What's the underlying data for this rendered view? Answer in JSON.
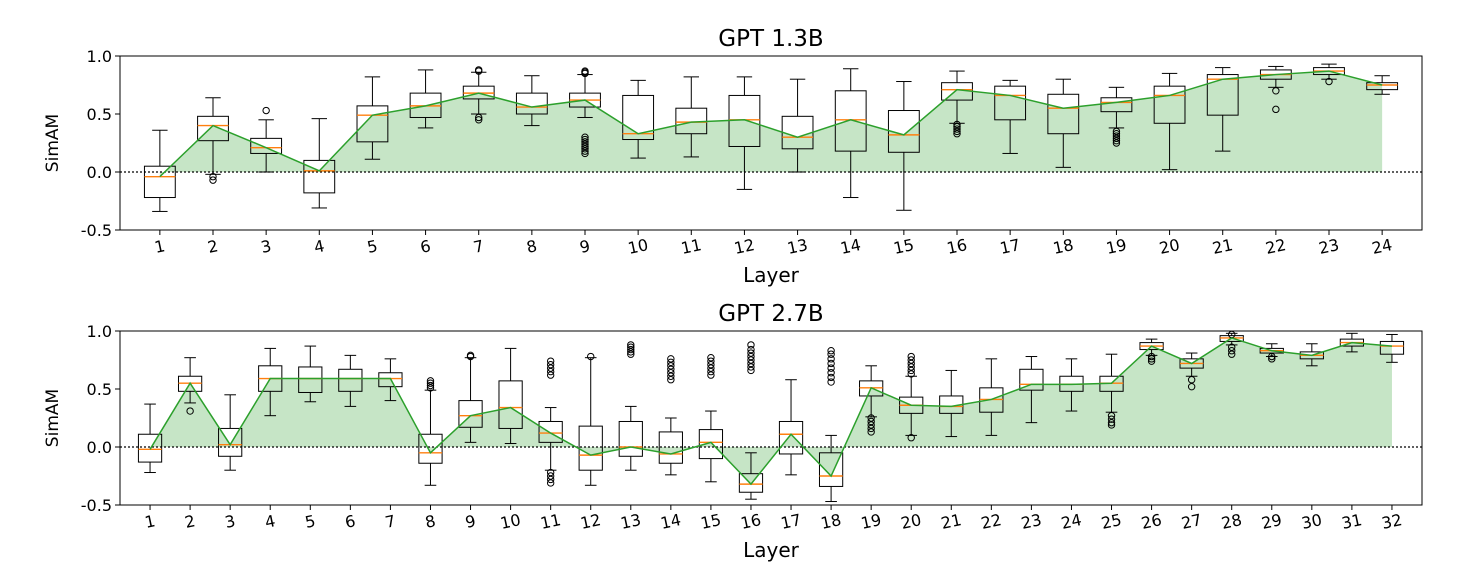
{
  "chart_data": [
    {
      "type": "box",
      "title": "GPT 1.3B",
      "xlabel": "Layer",
      "ylabel": "SimAM",
      "ylim": [
        -0.5,
        1.0
      ],
      "yticks": [
        -0.5,
        0.0,
        0.5,
        1.0
      ],
      "ytick_labels": [
        "-0.5",
        "0.0",
        "0.5",
        "1.0"
      ],
      "categories": [
        "1",
        "2",
        "3",
        "4",
        "5",
        "6",
        "7",
        "8",
        "9",
        "10",
        "11",
        "12",
        "13",
        "14",
        "15",
        "16",
        "17",
        "18",
        "19",
        "20",
        "21",
        "22",
        "23",
        "24"
      ],
      "reference_line": 0.0,
      "boxes": [
        {
          "whislo": -0.34,
          "q1": -0.22,
          "med": -0.04,
          "q3": 0.05,
          "whishi": 0.36,
          "fliers": []
        },
        {
          "whislo": -0.02,
          "q1": 0.27,
          "med": 0.4,
          "q3": 0.48,
          "whishi": 0.64,
          "fliers": [
            -0.04,
            -0.07
          ]
        },
        {
          "whislo": 0.0,
          "q1": 0.16,
          "med": 0.21,
          "q3": 0.29,
          "whishi": 0.45,
          "fliers": [
            0.53
          ]
        },
        {
          "whislo": -0.31,
          "q1": -0.18,
          "med": 0.01,
          "q3": 0.1,
          "whishi": 0.46,
          "fliers": []
        },
        {
          "whislo": 0.11,
          "q1": 0.26,
          "med": 0.49,
          "q3": 0.57,
          "whishi": 0.82,
          "fliers": []
        },
        {
          "whislo": 0.38,
          "q1": 0.47,
          "med": 0.57,
          "q3": 0.68,
          "whishi": 0.88,
          "fliers": []
        },
        {
          "whislo": 0.5,
          "q1": 0.63,
          "med": 0.68,
          "q3": 0.74,
          "whishi": 0.86,
          "fliers": [
            0.45,
            0.47,
            0.87,
            0.88
          ]
        },
        {
          "whislo": 0.4,
          "q1": 0.5,
          "med": 0.56,
          "q3": 0.68,
          "whishi": 0.83,
          "fliers": []
        },
        {
          "whislo": 0.47,
          "q1": 0.56,
          "med": 0.62,
          "q3": 0.68,
          "whishi": 0.84,
          "fliers": [
            0.16,
            0.18,
            0.2,
            0.22,
            0.24,
            0.26,
            0.28,
            0.3,
            0.85,
            0.86,
            0.87
          ]
        },
        {
          "whislo": 0.12,
          "q1": 0.28,
          "med": 0.33,
          "q3": 0.66,
          "whishi": 0.79,
          "fliers": []
        },
        {
          "whislo": 0.13,
          "q1": 0.33,
          "med": 0.43,
          "q3": 0.55,
          "whishi": 0.82,
          "fliers": []
        },
        {
          "whislo": -0.15,
          "q1": 0.22,
          "med": 0.45,
          "q3": 0.66,
          "whishi": 0.82,
          "fliers": []
        },
        {
          "whislo": 0.0,
          "q1": 0.2,
          "med": 0.3,
          "q3": 0.48,
          "whishi": 0.8,
          "fliers": []
        },
        {
          "whislo": -0.22,
          "q1": 0.18,
          "med": 0.45,
          "q3": 0.7,
          "whishi": 0.89,
          "fliers": []
        },
        {
          "whislo": -0.33,
          "q1": 0.17,
          "med": 0.32,
          "q3": 0.53,
          "whishi": 0.78,
          "fliers": []
        },
        {
          "whislo": 0.42,
          "q1": 0.62,
          "med": 0.71,
          "q3": 0.77,
          "whishi": 0.87,
          "fliers": [
            0.33,
            0.35,
            0.37,
            0.39,
            0.41
          ]
        },
        {
          "whislo": 0.16,
          "q1": 0.45,
          "med": 0.66,
          "q3": 0.74,
          "whishi": 0.79,
          "fliers": []
        },
        {
          "whislo": 0.04,
          "q1": 0.33,
          "med": 0.55,
          "q3": 0.67,
          "whishi": 0.8,
          "fliers": []
        },
        {
          "whislo": 0.38,
          "q1": 0.52,
          "med": 0.6,
          "q3": 0.64,
          "whishi": 0.73,
          "fliers": [
            0.25,
            0.27,
            0.29,
            0.31,
            0.33,
            0.35
          ]
        },
        {
          "whislo": 0.02,
          "q1": 0.42,
          "med": 0.66,
          "q3": 0.74,
          "whishi": 0.85,
          "fliers": []
        },
        {
          "whislo": 0.18,
          "q1": 0.49,
          "med": 0.8,
          "q3": 0.84,
          "whishi": 0.9,
          "fliers": []
        },
        {
          "whislo": 0.73,
          "q1": 0.8,
          "med": 0.84,
          "q3": 0.88,
          "whishi": 0.91,
          "fliers": [
            0.54,
            0.7
          ]
        },
        {
          "whislo": 0.8,
          "q1": 0.84,
          "med": 0.87,
          "q3": 0.9,
          "whishi": 0.93,
          "fliers": [
            0.78
          ]
        },
        {
          "whislo": 0.67,
          "q1": 0.71,
          "med": 0.75,
          "q3": 0.77,
          "whishi": 0.83,
          "fliers": []
        }
      ]
    },
    {
      "type": "box",
      "title": "GPT 2.7B",
      "xlabel": "Layer",
      "ylabel": "SimAM",
      "ylim": [
        -0.5,
        1.0
      ],
      "yticks": [
        -0.5,
        0.0,
        0.5,
        1.0
      ],
      "ytick_labels": [
        "-0.5",
        "0.0",
        "0.5",
        "1.0"
      ],
      "categories": [
        "1",
        "2",
        "3",
        "4",
        "5",
        "6",
        "7",
        "8",
        "9",
        "10",
        "11",
        "12",
        "13",
        "14",
        "15",
        "16",
        "17",
        "18",
        "19",
        "20",
        "21",
        "22",
        "23",
        "24",
        "25",
        "26",
        "27",
        "28",
        "29",
        "30",
        "31",
        "32"
      ],
      "reference_line": 0.0,
      "boxes": [
        {
          "whislo": -0.22,
          "q1": -0.13,
          "med": -0.02,
          "q3": 0.11,
          "whishi": 0.37,
          "fliers": []
        },
        {
          "whislo": 0.38,
          "q1": 0.48,
          "med": 0.55,
          "q3": 0.61,
          "whishi": 0.77,
          "fliers": [
            0.31
          ]
        },
        {
          "whislo": -0.2,
          "q1": -0.08,
          "med": 0.02,
          "q3": 0.16,
          "whishi": 0.45,
          "fliers": []
        },
        {
          "whislo": 0.27,
          "q1": 0.48,
          "med": 0.59,
          "q3": 0.7,
          "whishi": 0.85,
          "fliers": []
        },
        {
          "whislo": 0.39,
          "q1": 0.47,
          "med": 0.59,
          "q3": 0.69,
          "whishi": 0.87,
          "fliers": []
        },
        {
          "whislo": 0.35,
          "q1": 0.48,
          "med": 0.59,
          "q3": 0.67,
          "whishi": 0.79,
          "fliers": []
        },
        {
          "whislo": 0.4,
          "q1": 0.52,
          "med": 0.59,
          "q3": 0.64,
          "whishi": 0.76,
          "fliers": []
        },
        {
          "whislo": -0.33,
          "q1": -0.14,
          "med": -0.05,
          "q3": 0.11,
          "whishi": 0.49,
          "fliers": [
            0.51,
            0.53,
            0.55,
            0.57
          ]
        },
        {
          "whislo": 0.04,
          "q1": 0.17,
          "med": 0.27,
          "q3": 0.4,
          "whishi": 0.77,
          "fliers": [
            0.78,
            0.79
          ]
        },
        {
          "whislo": 0.03,
          "q1": 0.16,
          "med": 0.34,
          "q3": 0.57,
          "whishi": 0.85,
          "fliers": []
        },
        {
          "whislo": -0.2,
          "q1": 0.04,
          "med": 0.12,
          "q3": 0.22,
          "whishi": 0.34,
          "fliers": [
            -0.22,
            -0.25,
            -0.28,
            -0.31,
            0.62,
            0.65,
            0.68,
            0.71,
            0.74
          ]
        },
        {
          "whislo": -0.33,
          "q1": -0.2,
          "med": -0.07,
          "q3": 0.18,
          "whishi": 0.77,
          "fliers": [
            0.78
          ]
        },
        {
          "whislo": -0.2,
          "q1": -0.08,
          "med": 0.0,
          "q3": 0.22,
          "whishi": 0.35,
          "fliers": [
            0.8,
            0.82,
            0.84,
            0.86,
            0.88
          ]
        },
        {
          "whislo": -0.24,
          "q1": -0.14,
          "med": -0.06,
          "q3": 0.13,
          "whishi": 0.25,
          "fliers": [
            0.58,
            0.61,
            0.64,
            0.67,
            0.7,
            0.73,
            0.76
          ]
        },
        {
          "whislo": -0.3,
          "q1": -0.1,
          "med": 0.04,
          "q3": 0.15,
          "whishi": 0.31,
          "fliers": [
            0.62,
            0.65,
            0.68,
            0.71,
            0.74,
            0.77
          ]
        },
        {
          "whislo": -0.45,
          "q1": -0.39,
          "med": -0.32,
          "q3": -0.23,
          "whishi": -0.05,
          "fliers": [
            0.66,
            0.69,
            0.72,
            0.75,
            0.78,
            0.81,
            0.84,
            0.88
          ]
        },
        {
          "whislo": -0.24,
          "q1": -0.06,
          "med": 0.11,
          "q3": 0.22,
          "whishi": 0.58,
          "fliers": []
        },
        {
          "whislo": -0.47,
          "q1": -0.34,
          "med": -0.25,
          "q3": -0.05,
          "whishi": 0.1,
          "fliers": [
            0.56,
            0.6,
            0.64,
            0.68,
            0.72,
            0.76,
            0.8,
            0.83
          ]
        },
        {
          "whislo": 0.26,
          "q1": 0.44,
          "med": 0.51,
          "q3": 0.57,
          "whishi": 0.7,
          "fliers": [
            0.13,
            0.16,
            0.19,
            0.22,
            0.25
          ]
        },
        {
          "whislo": 0.1,
          "q1": 0.29,
          "med": 0.36,
          "q3": 0.43,
          "whishi": 0.61,
          "fliers": [
            0.08,
            0.63,
            0.66,
            0.69,
            0.72,
            0.75,
            0.78
          ]
        },
        {
          "whislo": 0.09,
          "q1": 0.29,
          "med": 0.35,
          "q3": 0.44,
          "whishi": 0.66,
          "fliers": []
        },
        {
          "whislo": 0.1,
          "q1": 0.3,
          "med": 0.41,
          "q3": 0.51,
          "whishi": 0.76,
          "fliers": []
        },
        {
          "whislo": 0.21,
          "q1": 0.49,
          "med": 0.54,
          "q3": 0.67,
          "whishi": 0.78,
          "fliers": []
        },
        {
          "whislo": 0.31,
          "q1": 0.48,
          "med": 0.54,
          "q3": 0.61,
          "whishi": 0.76,
          "fliers": []
        },
        {
          "whislo": 0.3,
          "q1": 0.48,
          "med": 0.55,
          "q3": 0.61,
          "whishi": 0.8,
          "fliers": [
            0.19,
            0.21,
            0.24,
            0.27
          ]
        },
        {
          "whislo": 0.79,
          "q1": 0.84,
          "med": 0.87,
          "q3": 0.9,
          "whishi": 0.93,
          "fliers": [
            0.74,
            0.76,
            0.78
          ]
        },
        {
          "whislo": 0.61,
          "q1": 0.68,
          "med": 0.72,
          "q3": 0.76,
          "whishi": 0.81,
          "fliers": [
            0.52,
            0.58
          ]
        },
        {
          "whislo": 0.88,
          "q1": 0.91,
          "med": 0.94,
          "q3": 0.96,
          "whishi": 0.98,
          "fliers": [
            0.8,
            0.83,
            0.86,
            0.97
          ]
        },
        {
          "whislo": 0.78,
          "q1": 0.81,
          "med": 0.83,
          "q3": 0.85,
          "whishi": 0.89,
          "fliers": [
            0.76,
            0.78
          ]
        },
        {
          "whislo": 0.7,
          "q1": 0.76,
          "med": 0.79,
          "q3": 0.82,
          "whishi": 0.89,
          "fliers": []
        },
        {
          "whislo": 0.82,
          "q1": 0.87,
          "med": 0.9,
          "q3": 0.93,
          "whishi": 0.98,
          "fliers": []
        },
        {
          "whislo": 0.73,
          "q1": 0.8,
          "med": 0.87,
          "q3": 0.91,
          "whishi": 0.97,
          "fliers": []
        }
      ]
    }
  ],
  "colors": {
    "box_edge": "#000000",
    "median": "#ff7f0e",
    "mean_line": "#2ca02c",
    "fill": "#2ca02c",
    "reference_line": "#000000"
  }
}
